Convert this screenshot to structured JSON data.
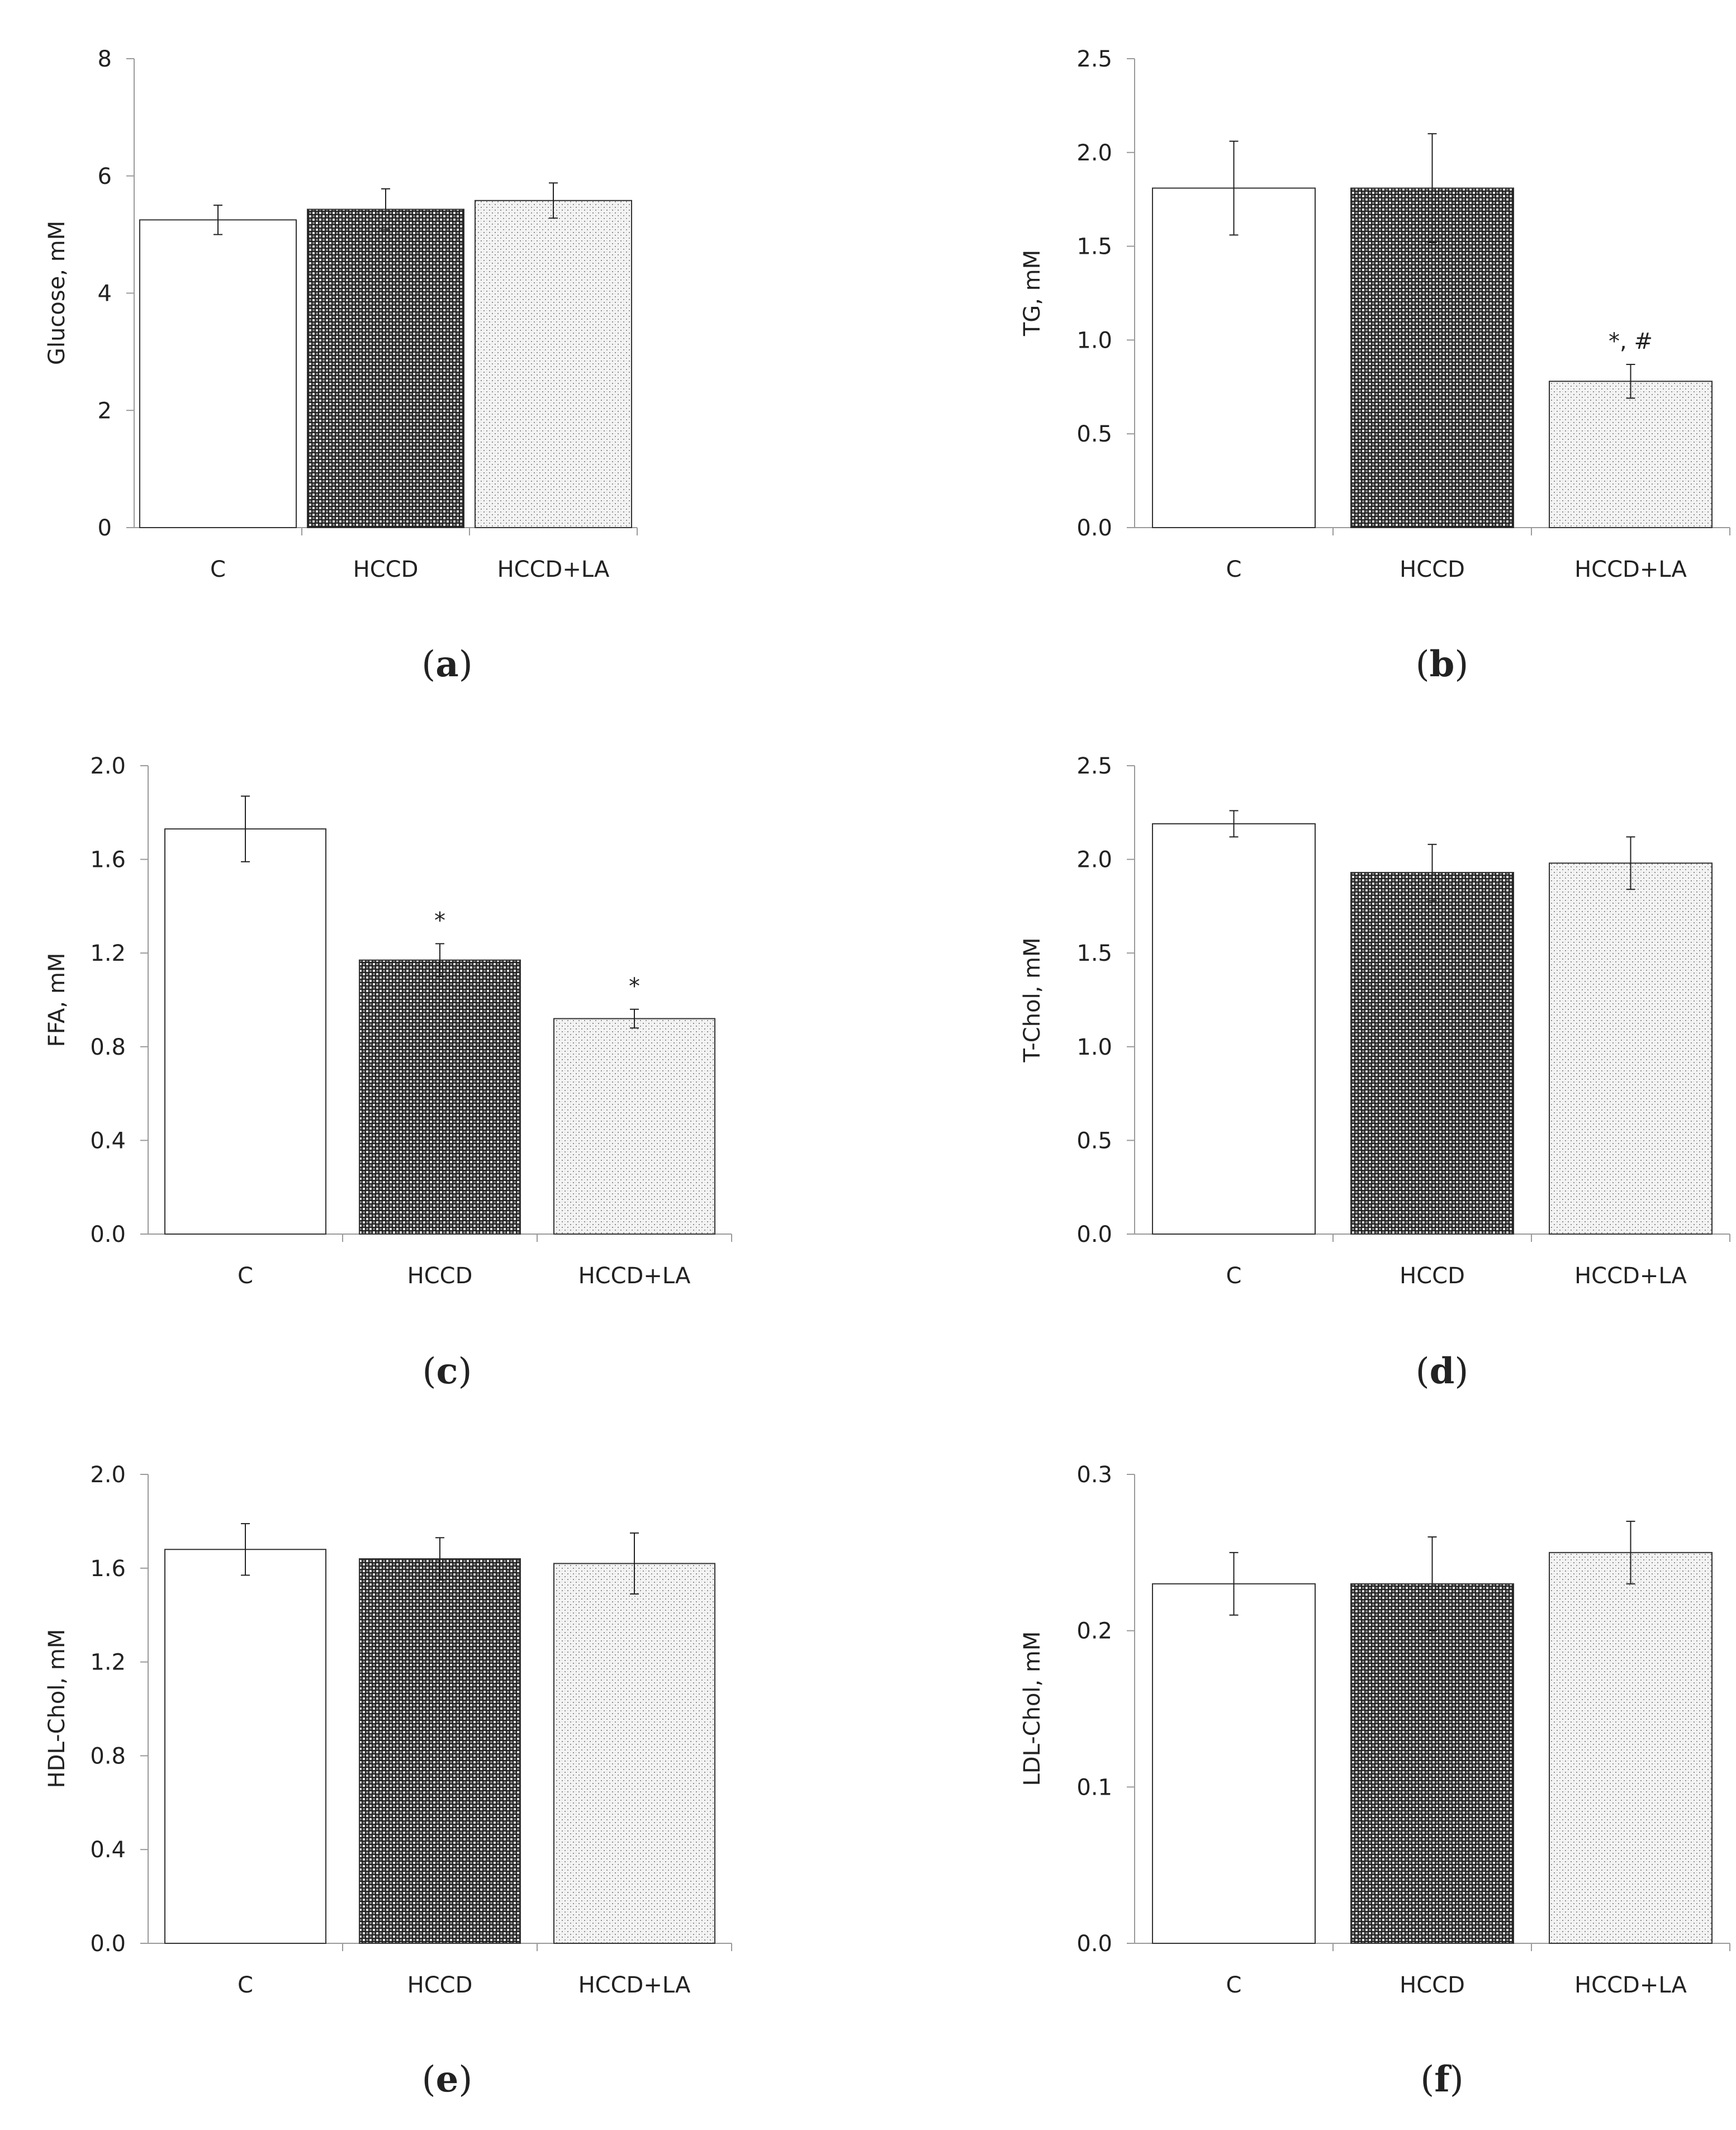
{
  "chart_data": [
    {
      "type": "bar",
      "panel": "a",
      "panel_label": "(a)",
      "panel_letter": "a",
      "ylabel": "Glucose, mM",
      "ylim": [
        0,
        8
      ],
      "yticks": [
        "0",
        "2",
        "4",
        "6",
        "8"
      ],
      "categories": [
        "C",
        "HCCD",
        "HCCD+LA"
      ],
      "values": [
        5.25,
        5.43,
        5.58
      ],
      "errors": [
        0.25,
        0.35,
        0.3
      ],
      "annotations": [
        "",
        "",
        ""
      ]
    },
    {
      "type": "bar",
      "panel": "b",
      "panel_label": "(b)",
      "panel_letter": "b",
      "ylabel": "TG, mM",
      "ylim": [
        0,
        2.5
      ],
      "yticks": [
        "0.0",
        "0.5",
        "1.0",
        "1.5",
        "2.0",
        "2.5"
      ],
      "categories": [
        "C",
        "HCCD",
        "HCCD+LA"
      ],
      "values": [
        1.81,
        1.81,
        0.78
      ],
      "errors": [
        0.25,
        0.29,
        0.09
      ],
      "annotations": [
        "",
        "",
        "*, #"
      ]
    },
    {
      "type": "bar",
      "panel": "c",
      "panel_label": "(c)",
      "panel_letter": "c",
      "ylabel": "FFA, mM",
      "ylim": [
        0,
        2.0
      ],
      "yticks": [
        "0.0",
        "0.4",
        "0.8",
        "1.2",
        "1.6",
        "2.0"
      ],
      "categories": [
        "C",
        "HCCD",
        "HCCD+LA"
      ],
      "values": [
        1.73,
        1.17,
        0.92
      ],
      "errors": [
        0.14,
        0.07,
        0.04
      ],
      "annotations": [
        "",
        "*",
        "*"
      ]
    },
    {
      "type": "bar",
      "panel": "d",
      "panel_label": "(d)",
      "panel_letter": "d",
      "ylabel": "T-Chol, mM",
      "ylim": [
        0,
        2.5
      ],
      "yticks": [
        "0.0",
        "0.5",
        "1.0",
        "1.5",
        "2.0",
        "2.5"
      ],
      "categories": [
        "C",
        "HCCD",
        "HCCD+LA"
      ],
      "values": [
        2.19,
        1.93,
        1.98
      ],
      "errors": [
        0.07,
        0.15,
        0.14
      ],
      "annotations": [
        "",
        "",
        ""
      ]
    },
    {
      "type": "bar",
      "panel": "e",
      "panel_label": "(e)",
      "panel_letter": "e",
      "ylabel": "HDL-Chol, mM",
      "ylim": [
        0,
        2.0
      ],
      "yticks": [
        "0.0",
        "0.4",
        "0.8",
        "1.2",
        "1.6",
        "2.0"
      ],
      "categories": [
        "C",
        "HCCD",
        "HCCD+LA"
      ],
      "values": [
        1.68,
        1.64,
        1.62
      ],
      "errors": [
        0.11,
        0.09,
        0.13
      ],
      "annotations": [
        "",
        "",
        ""
      ]
    },
    {
      "type": "bar",
      "panel": "f",
      "panel_label": "(f)",
      "panel_letter": "f",
      "ylabel": "LDL-Chol, mM",
      "ylim": [
        0,
        0.3
      ],
      "yticks": [
        "0.0",
        "0.1",
        "0.2",
        "0.3"
      ],
      "categories": [
        "C",
        "HCCD",
        "HCCD+LA"
      ],
      "values": [
        0.23,
        0.23,
        0.25
      ],
      "errors": [
        0.02,
        0.03,
        0.02
      ],
      "annotations": [
        "",
        "",
        ""
      ]
    }
  ]
}
